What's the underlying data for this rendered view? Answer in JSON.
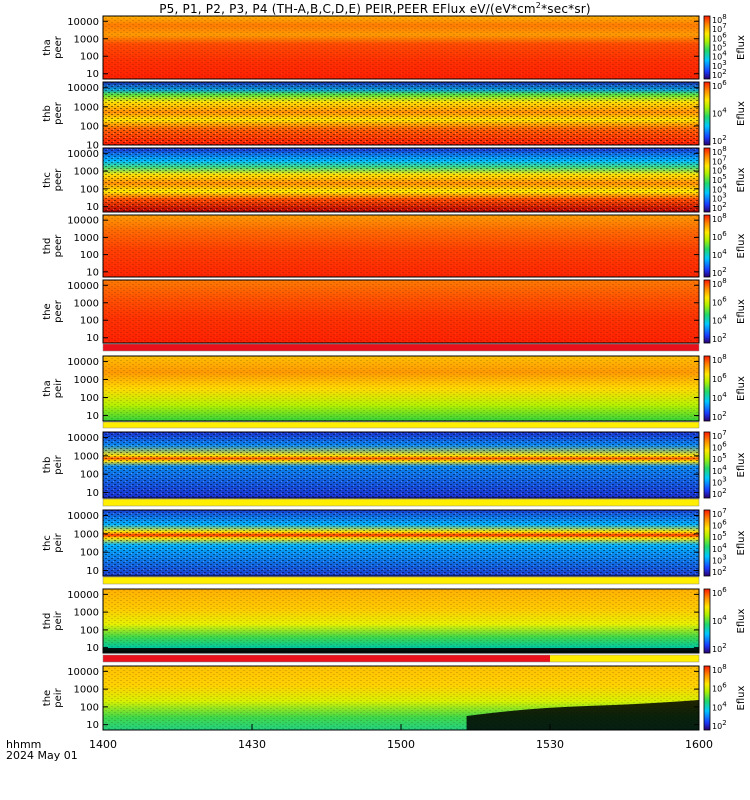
{
  "title": "P5, P1, P2, P3, P4 (TH-A,B,C,D,E) PEIR,PEER EFlux eV/(eV*cm^2*sec*sr)",
  "title_parts": {
    "main": "P5, P1, P2, P3, P4 (TH-A,B,C,D,E) PEIR,PEER EFlux eV/(eV*cm",
    "sup": "2",
    "tail": "*sec*sr)"
  },
  "time_axis": {
    "label_top": "hhmm",
    "label_bottom": "2024 May 01",
    "ticks": [
      "1400",
      "1430",
      "1500",
      "1530",
      "1600"
    ],
    "range_hhmm": [
      "1400",
      "1600"
    ]
  },
  "colorbar_title": "Eflux",
  "chart_data": [
    {
      "type": "heatmap",
      "probe": "tha",
      "species": "peer",
      "ylabel": [
        "tha",
        "peer"
      ],
      "yticks": [
        "10000",
        "1000",
        "100",
        "10"
      ],
      "cbticks": [
        "10^2",
        "10^3",
        "10^4",
        "10^5",
        "10^6",
        "10^7",
        "10^8"
      ],
      "ylog": true,
      "ylim": [
        5,
        20000
      ]
    },
    {
      "type": "heatmap",
      "probe": "thb",
      "species": "peer",
      "ylabel": [
        "thb",
        "peer"
      ],
      "yticks": [
        "10000",
        "1000",
        "100",
        "10"
      ],
      "cbticks": [
        "10^2",
        "10^4",
        "10^6"
      ],
      "ylog": true,
      "ylim": [
        10,
        20000
      ]
    },
    {
      "type": "heatmap",
      "probe": "thc",
      "species": "peer",
      "ylabel": [
        "thc",
        "peer"
      ],
      "yticks": [
        "10000",
        "1000",
        "100",
        "10"
      ],
      "cbticks": [
        "10^2",
        "10^3",
        "10^4",
        "10^5",
        "10^6",
        "10^7",
        "10^8"
      ],
      "ylog": true,
      "ylim": [
        5,
        20000
      ]
    },
    {
      "type": "heatmap",
      "probe": "thd",
      "species": "peer",
      "ylabel": [
        "thd",
        "peer"
      ],
      "yticks": [
        "10000",
        "1000",
        "100",
        "10"
      ],
      "cbticks": [
        "10^2",
        "10^4",
        "10^6",
        "10^8"
      ],
      "ylog": true,
      "ylim": [
        5,
        20000
      ]
    },
    {
      "type": "heatmap",
      "probe": "the",
      "species": "peer",
      "ylabel": [
        "the",
        "peer"
      ],
      "yticks": [
        "10000",
        "1000",
        "100",
        "10"
      ],
      "cbticks": [
        "10^2",
        "10^4",
        "10^6",
        "10^8"
      ],
      "ylog": true,
      "ylim": [
        5,
        20000
      ]
    },
    {
      "type": "heatmap",
      "probe": "tha",
      "species": "peir",
      "ylabel": [
        "tha",
        "peir"
      ],
      "yticks": [
        "10000",
        "1000",
        "100",
        "10"
      ],
      "cbticks": [
        "10^2",
        "10^4",
        "10^6",
        "10^8"
      ],
      "ylog": true,
      "ylim": [
        5,
        20000
      ]
    },
    {
      "type": "heatmap",
      "probe": "thb",
      "species": "peir",
      "ylabel": [
        "thb",
        "peir"
      ],
      "yticks": [
        "10000",
        "1000",
        "100",
        "10"
      ],
      "cbticks": [
        "10^2",
        "10^3",
        "10^4",
        "10^5",
        "10^6",
        "10^7"
      ],
      "ylog": true,
      "ylim": [
        5,
        20000
      ]
    },
    {
      "type": "heatmap",
      "probe": "thc",
      "species": "peir",
      "ylabel": [
        "thc",
        "peir"
      ],
      "yticks": [
        "10000",
        "1000",
        "100",
        "10"
      ],
      "cbticks": [
        "10^2",
        "10^3",
        "10^4",
        "10^5",
        "10^6",
        "10^7"
      ],
      "ylog": true,
      "ylim": [
        5,
        20000
      ]
    },
    {
      "type": "heatmap",
      "probe": "thd",
      "species": "peir",
      "ylabel": [
        "thd",
        "peir"
      ],
      "yticks": [
        "10000",
        "1000",
        "100",
        "10"
      ],
      "cbticks": [
        "10^2",
        "10^4",
        "10^6"
      ],
      "ylog": true,
      "ylim": [
        5,
        20000
      ]
    },
    {
      "type": "heatmap",
      "probe": "the",
      "species": "peir",
      "ylabel": [
        "the",
        "peir"
      ],
      "yticks": [
        "10000",
        "1000",
        "100",
        "10"
      ],
      "cbticks": [
        "10^2",
        "10^4",
        "10^6",
        "10^8"
      ],
      "ylog": true,
      "ylim": [
        5,
        20000
      ]
    }
  ],
  "colors": {
    "red": "#ff2a00",
    "orange": "#ff8c00",
    "yellow": "#ffe800",
    "green": "#33d13a",
    "cyan": "#00c8ff",
    "blue": "#1a3cff",
    "dark": "#000000",
    "mode_bar_red": "#e8101a",
    "mode_bar_yellow": "#ffee00"
  }
}
